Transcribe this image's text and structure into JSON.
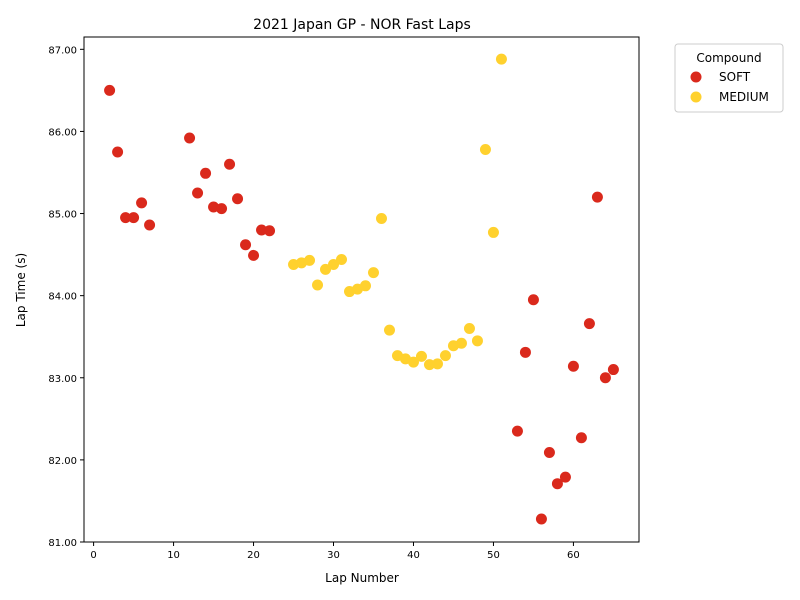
{
  "chart_data": {
    "type": "scatter",
    "title": "2021 Japan GP - NOR Fast Laps",
    "xlabel": "Lap Number",
    "ylabel": "Lap Time (s)",
    "xlim": [
      -1.2,
      68.2
    ],
    "ylim": [
      81.0,
      87.15
    ],
    "x_ticks": [
      0,
      10,
      20,
      30,
      40,
      50,
      60
    ],
    "y_ticks": [
      81.0,
      82.0,
      83.0,
      84.0,
      85.0,
      86.0,
      87.0
    ],
    "y_tick_labels": [
      "81.00",
      "82.00",
      "83.00",
      "84.00",
      "85.00",
      "86.00",
      "87.00"
    ],
    "grid": false,
    "legend": {
      "title": "Compound",
      "placement": "outside-top-right"
    },
    "series": [
      {
        "name": "SOFT",
        "color": "#da291c",
        "points": [
          [
            2,
            86.5
          ],
          [
            3,
            85.75
          ],
          [
            4,
            84.95
          ],
          [
            5,
            84.95
          ],
          [
            6,
            85.13
          ],
          [
            7,
            84.86
          ],
          [
            12,
            85.92
          ],
          [
            13,
            85.25
          ],
          [
            14,
            85.49
          ],
          [
            15,
            85.08
          ],
          [
            16,
            85.06
          ],
          [
            17,
            85.6
          ],
          [
            18,
            85.18
          ],
          [
            19,
            84.62
          ],
          [
            20,
            84.49
          ],
          [
            21,
            84.8
          ],
          [
            22,
            84.79
          ],
          [
            53,
            82.35
          ],
          [
            54,
            83.31
          ],
          [
            55,
            83.95
          ],
          [
            56,
            81.28
          ],
          [
            57,
            82.09
          ],
          [
            58,
            81.71
          ],
          [
            59,
            81.79
          ],
          [
            60,
            83.14
          ],
          [
            61,
            82.27
          ],
          [
            62,
            83.66
          ],
          [
            63,
            85.2
          ],
          [
            64,
            83.0
          ],
          [
            65,
            83.1
          ]
        ]
      },
      {
        "name": "MEDIUM",
        "color": "#ffd12e",
        "points": [
          [
            25,
            84.38
          ],
          [
            26,
            84.4
          ],
          [
            27,
            84.43
          ],
          [
            28,
            84.13
          ],
          [
            29,
            84.32
          ],
          [
            30,
            84.38
          ],
          [
            31,
            84.44
          ],
          [
            32,
            84.05
          ],
          [
            33,
            84.08
          ],
          [
            34,
            84.12
          ],
          [
            35,
            84.28
          ],
          [
            36,
            84.94
          ],
          [
            37,
            83.58
          ],
          [
            38,
            83.27
          ],
          [
            39,
            83.23
          ],
          [
            40,
            83.19
          ],
          [
            41,
            83.26
          ],
          [
            42,
            83.16
          ],
          [
            43,
            83.17
          ],
          [
            44,
            83.27
          ],
          [
            45,
            83.39
          ],
          [
            46,
            83.42
          ],
          [
            47,
            83.6
          ],
          [
            48,
            83.45
          ],
          [
            49,
            85.78
          ],
          [
            50,
            84.77
          ],
          [
            51,
            86.88
          ]
        ]
      }
    ]
  }
}
